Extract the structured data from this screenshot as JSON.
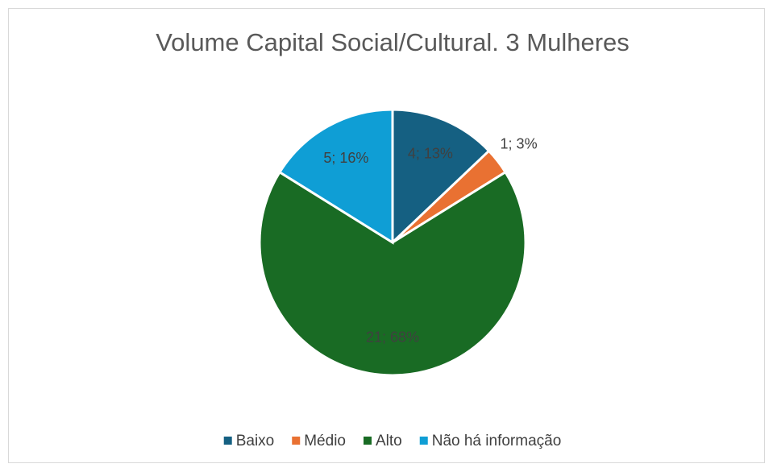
{
  "chart_data": {
    "type": "pie",
    "title": "Volume Capital Social/Cultural. 3 Mulheres",
    "categories": [
      "Baixo",
      "Médio",
      "Alto",
      "Não há informação"
    ],
    "values": [
      4,
      1,
      21,
      5
    ],
    "value_labels": [
      "4; 13%",
      "1; 3%",
      "21; 68%",
      "5; 16%"
    ],
    "colors": [
      "#156082",
      "#e97132",
      "#196b24",
      "#0f9ed5"
    ],
    "legend": "bottom"
  }
}
